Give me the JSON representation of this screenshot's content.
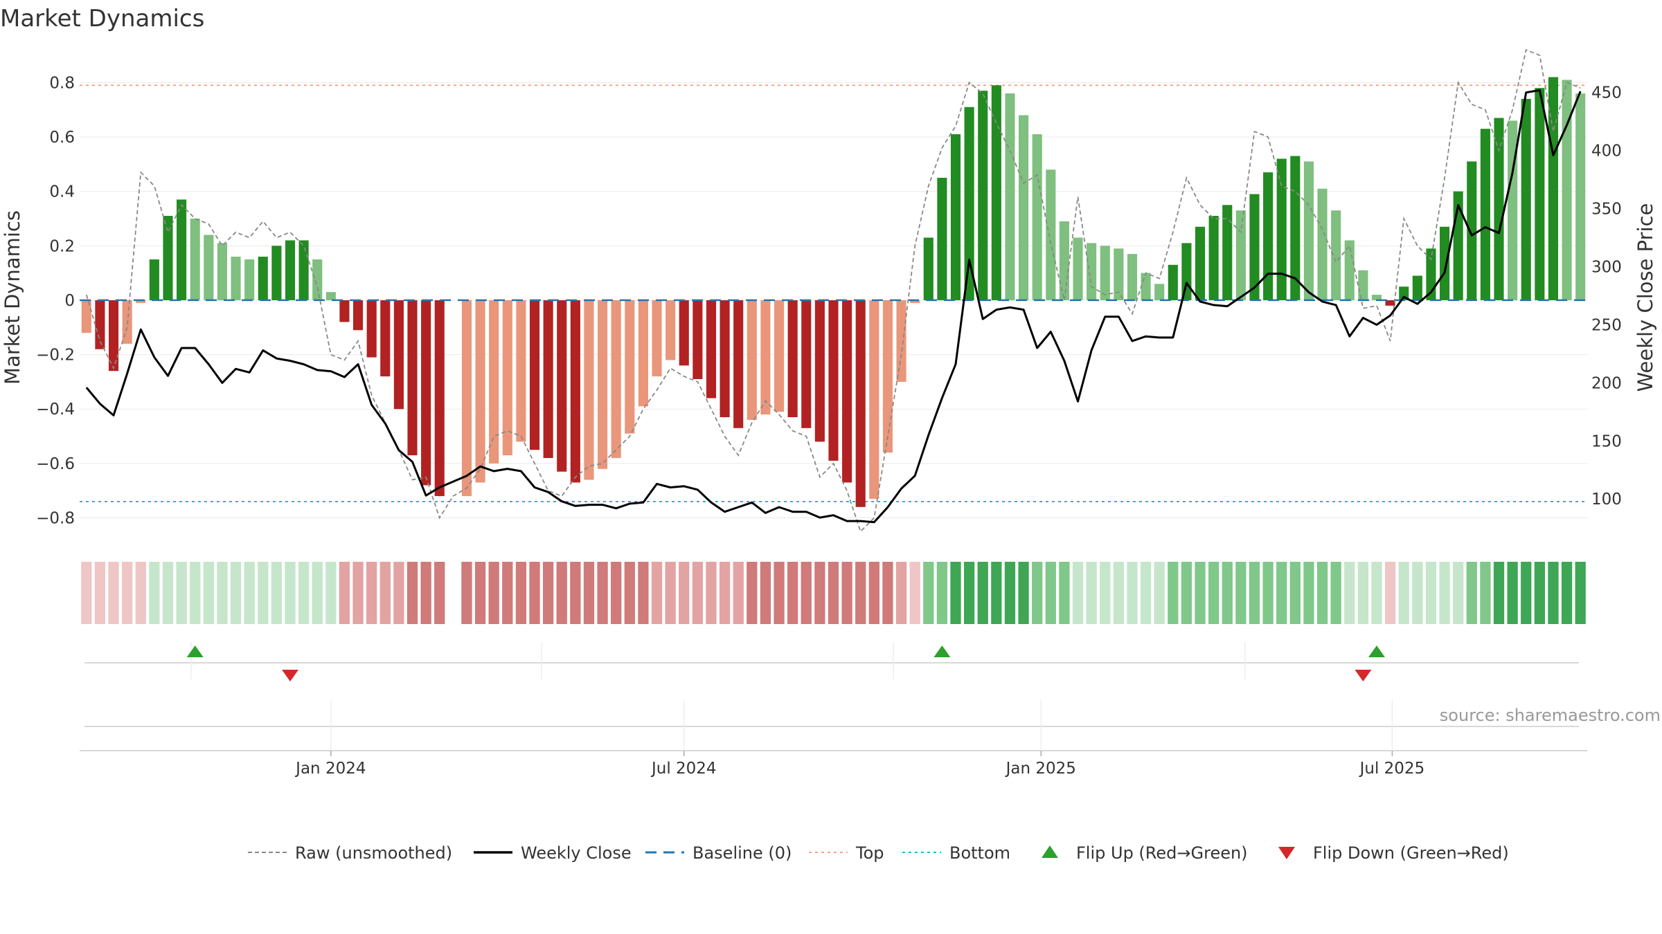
{
  "title": "Market Dynamics",
  "source": "source: sharemaestro.com",
  "chart_data": {
    "type": "bar",
    "title": "Market Dynamics",
    "ylabel": "Market Dynamics",
    "y2label": "Weekly Close Price",
    "ylim": [
      -0.88,
      0.9
    ],
    "y2lim": [
      65,
      482
    ],
    "yticks": [
      0.8,
      0.6,
      0.4,
      0.2,
      0,
      -0.2,
      -0.4,
      -0.6,
      -0.8
    ],
    "yticks_text": [
      "0.8",
      "0.6",
      "0.4",
      "0.2",
      "0",
      "−0.2",
      "−0.4",
      "−0.6",
      "−0.8"
    ],
    "y2ticks": [
      450,
      400,
      350,
      300,
      250,
      200,
      150,
      100
    ],
    "x_start": "2023-08-28",
    "x_end": "2025-09-15",
    "x_interval_days": 7,
    "xticks": [
      {
        "label": "Jan 2024",
        "date": "2024-01-01"
      },
      {
        "label": "Jul 2024",
        "date": "2024-07-01"
      },
      {
        "label": "Jan 2025",
        "date": "2025-01-01"
      },
      {
        "label": "Jul 2025",
        "date": "2025-07-01"
      }
    ],
    "top_level": 0.79,
    "bottom_level": -0.74,
    "bars": [
      -0.12,
      -0.18,
      -0.26,
      -0.16,
      -0.01,
      0.15,
      0.31,
      0.37,
      0.3,
      0.24,
      0.21,
      0.16,
      0.15,
      0.16,
      0.2,
      0.22,
      0.22,
      0.15,
      0.03,
      -0.08,
      -0.11,
      -0.21,
      -0.28,
      -0.4,
      -0.57,
      -0.68,
      -0.72,
      null,
      -0.72,
      -0.67,
      -0.6,
      -0.57,
      -0.52,
      -0.55,
      -0.58,
      -0.63,
      -0.67,
      -0.66,
      -0.62,
      -0.58,
      -0.49,
      -0.39,
      -0.28,
      -0.22,
      -0.24,
      -0.29,
      -0.36,
      -0.43,
      -0.47,
      -0.44,
      -0.42,
      -0.41,
      -0.43,
      -0.47,
      -0.52,
      -0.59,
      -0.67,
      -0.76,
      -0.73,
      -0.56,
      -0.3,
      -0.01,
      0.23,
      0.45,
      0.61,
      0.71,
      0.77,
      0.79,
      0.76,
      0.68,
      0.61,
      0.48,
      0.29,
      0.23,
      0.21,
      0.2,
      0.19,
      0.17,
      0.1,
      0.06,
      0.13,
      0.21,
      0.27,
      0.31,
      0.35,
      0.33,
      0.39,
      0.47,
      0.52,
      0.53,
      0.51,
      0.41,
      0.33,
      0.22,
      0.11,
      0.02,
      -0.02,
      0.05,
      0.09,
      0.19,
      0.27,
      0.4,
      0.51,
      0.63,
      0.67,
      0.66,
      0.74,
      0.78,
      0.82,
      0.81,
      0.76
    ],
    "weekly_close": [
      196,
      182,
      172,
      208,
      246,
      222,
      206,
      230,
      230,
      216,
      200,
      212,
      209,
      228,
      221,
      219,
      216,
      211,
      210,
      205,
      216,
      181,
      165,
      142,
      132,
      103,
      110,
      115,
      120,
      128,
      124,
      126,
      124,
      110,
      106,
      98,
      94,
      95,
      95,
      92,
      96,
      97,
      113,
      110,
      111,
      108,
      97,
      89,
      93,
      97,
      88,
      93,
      89,
      89,
      84,
      86,
      81,
      81,
      80,
      93,
      109,
      120,
      155,
      187,
      216,
      306,
      255,
      263,
      265,
      263,
      230,
      244,
      219,
      184,
      228,
      257,
      257,
      236,
      240,
      239,
      239,
      286,
      270,
      267,
      266,
      274,
      282,
      294,
      294,
      290,
      278,
      270,
      267,
      240,
      256,
      250,
      258,
      274,
      268,
      278,
      295,
      353,
      327,
      334,
      329,
      381,
      450,
      452,
      396,
      422,
      451
    ],
    "raw": [
      0.02,
      -0.15,
      -0.25,
      -0.1,
      0.47,
      0.42,
      0.25,
      0.35,
      0.3,
      0.28,
      0.2,
      0.25,
      0.23,
      0.29,
      0.23,
      0.25,
      0.2,
      0.05,
      -0.2,
      -0.22,
      -0.15,
      -0.35,
      -0.45,
      -0.55,
      -0.66,
      -0.65,
      -0.8,
      -0.72,
      -0.69,
      -0.62,
      -0.5,
      -0.48,
      -0.5,
      -0.6,
      -0.7,
      -0.72,
      -0.65,
      -0.61,
      -0.6,
      -0.55,
      -0.5,
      -0.4,
      -0.33,
      -0.25,
      -0.28,
      -0.3,
      -0.4,
      -0.5,
      -0.57,
      -0.45,
      -0.37,
      -0.42,
      -0.48,
      -0.5,
      -0.65,
      -0.6,
      -0.7,
      -0.85,
      -0.8,
      -0.5,
      -0.2,
      0.2,
      0.42,
      0.56,
      0.64,
      0.8,
      0.76,
      0.65,
      0.55,
      0.43,
      0.46,
      0.21,
      0.0,
      0.38,
      0.05,
      0.02,
      0.03,
      -0.05,
      0.1,
      0.08,
      0.25,
      0.45,
      0.35,
      0.3,
      0.3,
      0.25,
      0.62,
      0.6,
      0.42,
      0.4,
      0.35,
      0.26,
      0.14,
      0.2,
      -0.03,
      -0.02,
      -0.15,
      0.3,
      0.2,
      0.15,
      0.45,
      0.8,
      0.72,
      0.7,
      0.55,
      0.7,
      0.92,
      0.9,
      0.62,
      0.8,
      0.78
    ],
    "strip_shade": [
      1,
      1,
      1,
      1,
      1,
      1,
      1,
      1,
      1,
      1,
      1,
      1,
      1,
      1,
      1,
      1,
      1,
      1,
      1,
      2,
      2,
      2,
      2,
      2,
      3,
      3,
      3,
      null,
      3,
      3,
      3,
      3,
      3,
      3,
      3,
      3,
      3,
      3,
      3,
      3,
      3,
      3,
      2,
      2,
      2,
      2,
      2,
      2,
      2,
      3,
      3,
      3,
      3,
      3,
      3,
      3,
      3,
      3,
      3,
      3,
      2,
      1,
      2,
      2,
      3,
      3,
      3,
      3,
      3,
      3,
      2,
      2,
      2,
      1,
      1,
      1,
      1,
      1,
      1,
      1,
      2,
      2,
      2,
      2,
      2,
      2,
      2,
      2,
      2,
      2,
      2,
      2,
      2,
      1,
      1,
      1,
      1,
      1,
      1,
      1,
      1,
      1,
      2,
      2,
      3,
      3,
      3,
      3,
      3,
      3,
      3
    ],
    "flip_up": [
      "2023-10-23",
      "2024-11-11",
      "2025-06-23"
    ],
    "flip_down": [
      "2023-12-11",
      "2025-06-16"
    ],
    "legend": [
      {
        "label": "Raw (unsmoothed)",
        "kind": "dashed-gray"
      },
      {
        "label": "Weekly Close",
        "kind": "solid-black"
      },
      {
        "label": "Baseline (0)",
        "kind": "dashed-blue"
      },
      {
        "label": "Top",
        "kind": "dotted-orange"
      },
      {
        "label": "Bottom",
        "kind": "dotted-cyan"
      },
      {
        "label": "Flip Up (Red→Green)",
        "kind": "triangle-up"
      },
      {
        "label": "Flip Down (Green→Red)",
        "kind": "triangle-down"
      }
    ],
    "colors": {
      "green_strong": "#228B22",
      "green_weak": "#7fbf7f",
      "red_strong": "#b22222",
      "red_weak": "#e9967a",
      "raw": "#888888",
      "close": "#000000",
      "baseline": "#1f77b4",
      "top": "#f4a582",
      "bottom": "#17becf",
      "flip_up": "#2ca02c",
      "flip_down": "#d62728"
    }
  }
}
